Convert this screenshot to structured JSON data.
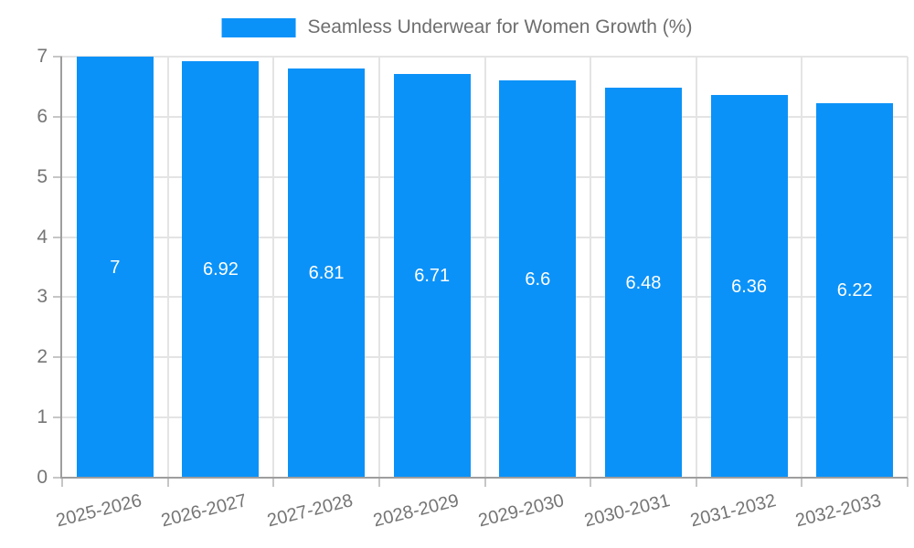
{
  "chart_data": {
    "type": "bar",
    "title": "Seamless Underwear for Women Growth (%)",
    "categories": [
      "2025-2026",
      "2026-2027",
      "2027-2028",
      "2028-2029",
      "2029-2030",
      "2030-2031",
      "2031-2032",
      "2032-2033"
    ],
    "values": [
      7,
      6.92,
      6.81,
      6.71,
      6.6,
      6.48,
      6.36,
      6.22
    ],
    "value_labels": [
      "7",
      "6.92",
      "6.81",
      "6.71",
      "6.6",
      "6.48",
      "6.36",
      "6.22"
    ],
    "xlabel": "",
    "ylabel": "",
    "ylim": [
      0,
      7
    ],
    "yticks": [
      0,
      1,
      2,
      3,
      4,
      5,
      6,
      7
    ],
    "grid": true,
    "legend_position": "top-center",
    "colors": {
      "bar": "#0b92f8",
      "bar_value_text": "#ffffff",
      "grid": "#e4e4e4",
      "axis": "#9e9e9e",
      "tick_stub": "#c6c6c6",
      "tick_text": "#757575",
      "legend_text": "#6e6e6e"
    }
  },
  "legend": {
    "label": "Seamless Underwear for Women Growth (%)"
  }
}
